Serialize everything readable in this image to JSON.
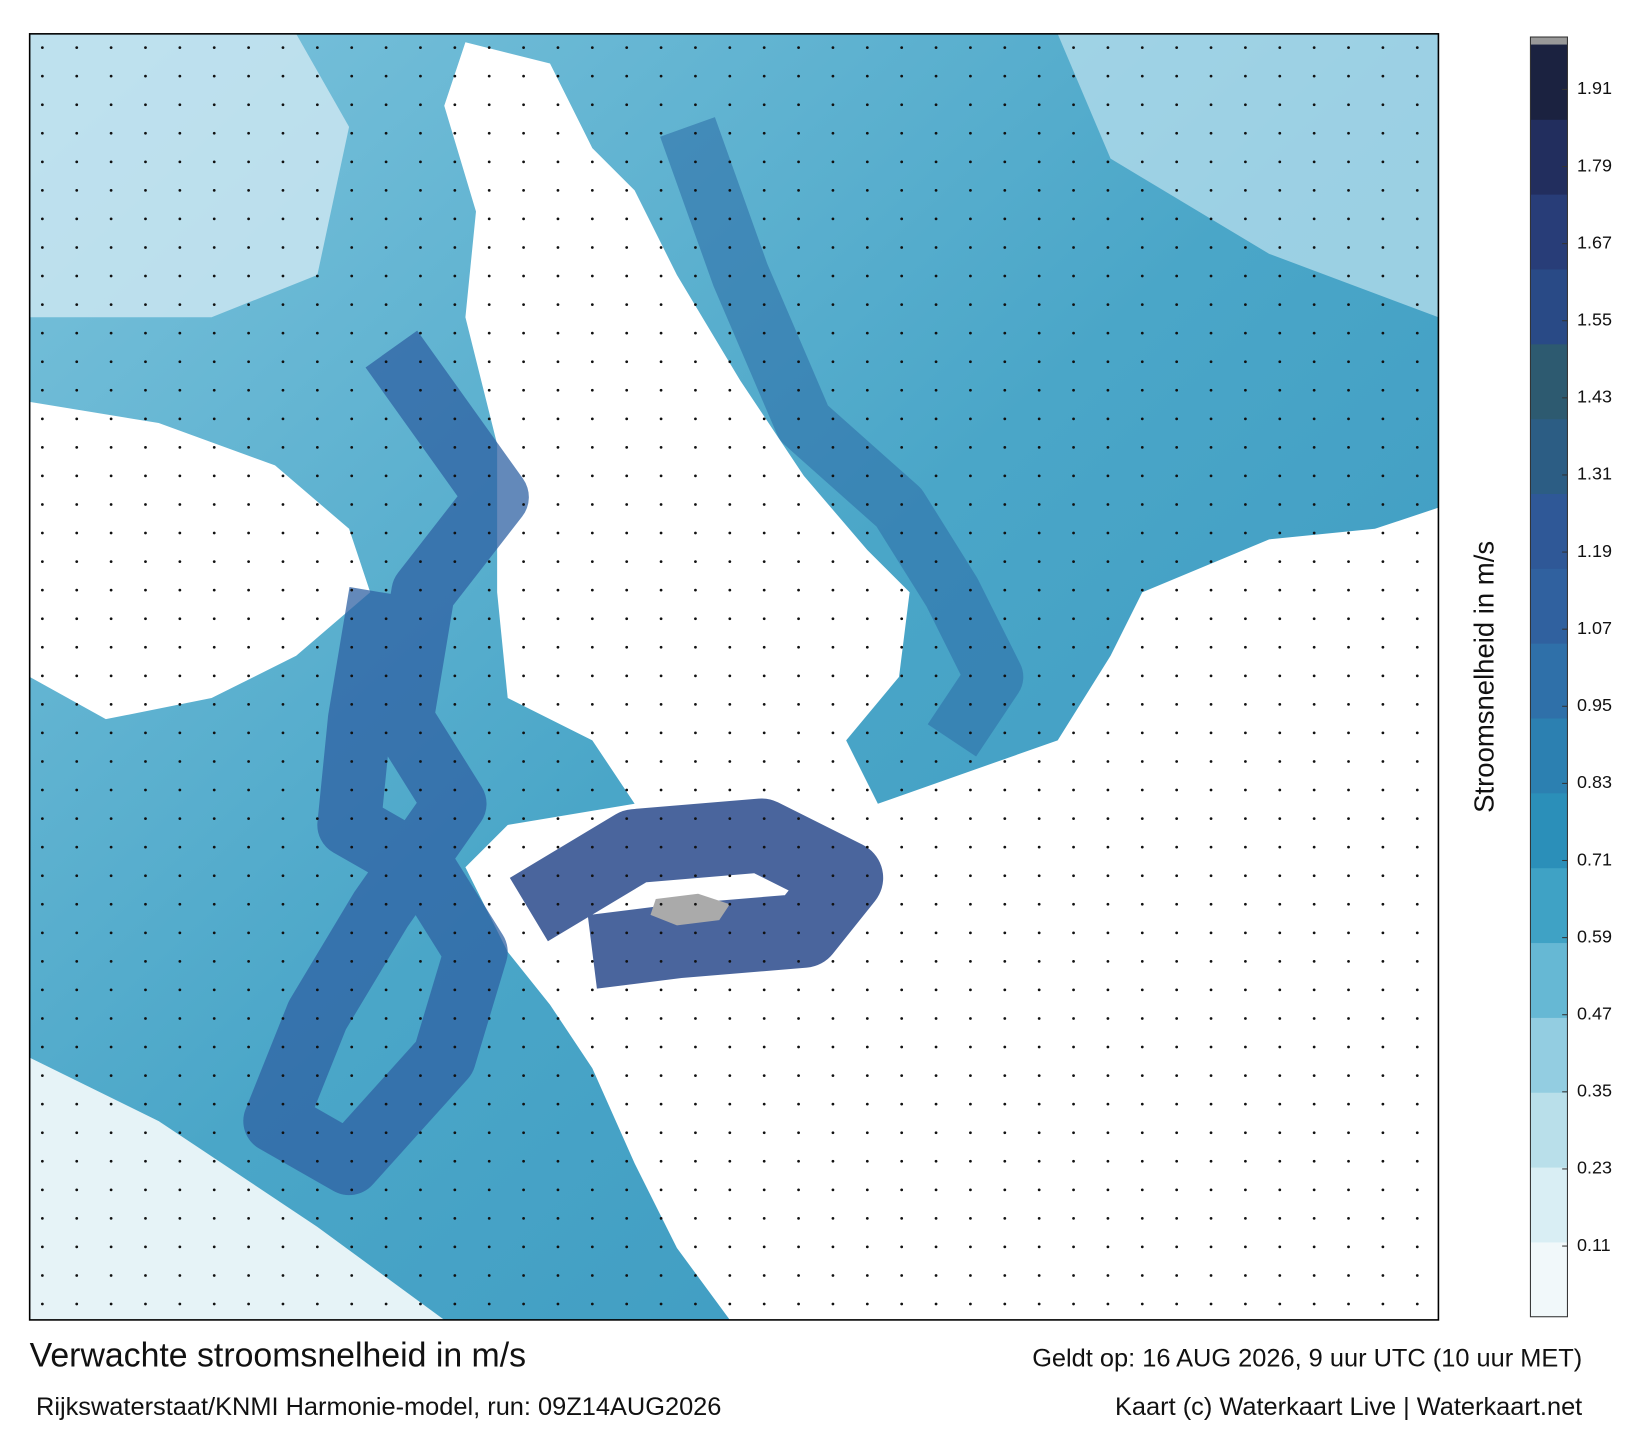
{
  "header": {
    "title": "Verwachte stroomsnelheid in m/s",
    "subtitle": "Rijkswaterstaat/KNMI Harmonie-model, run: 09Z14AUG2026",
    "valid": "Geldt op: 16 AUG 2026, 9 uur UTC (10 uur MET)",
    "credit": "Kaart (c) Waterkaart Live | Waterkaart.net"
  },
  "colorbar": {
    "label": "Stroomsnelheid in m/s",
    "lim": [
      0,
      1.98
    ],
    "ticks": [
      0.11,
      0.23,
      0.35,
      0.47,
      0.59,
      0.71,
      0.83,
      0.95,
      1.07,
      1.19,
      1.31,
      1.43,
      1.55,
      1.67,
      1.79,
      1.91
    ],
    "colors": [
      "#f1f8fa",
      "#d9eef4",
      "#b9dfea",
      "#93cde1",
      "#66b8d4",
      "#3fa2c5",
      "#2b8fb9",
      "#2c80b1",
      "#2f70a9",
      "#30619f",
      "#2f5897",
      "#2c5d84",
      "#2d5a70",
      "#294a86",
      "#283d78",
      "#222e5e",
      "#1b2240"
    ]
  }
}
